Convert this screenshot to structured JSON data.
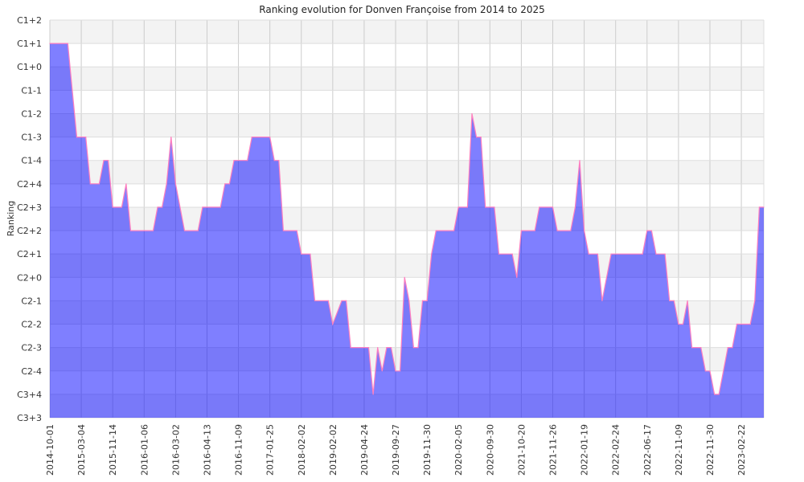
{
  "chart_data": {
    "type": "area",
    "title": "Ranking evolution for Donven Françoise from 2014 to 2025",
    "xlabel": "",
    "ylabel": "Ranking",
    "y_levels": [
      "C3+3",
      "C3+4",
      "C2-4",
      "C2-3",
      "C2-2",
      "C2-1",
      "C2+0",
      "C2+1",
      "C2+2",
      "C2+3",
      "C2+4",
      "C1-4",
      "C1-3",
      "C1-2",
      "C1-1",
      "C1+0",
      "C1+1",
      "C1+2"
    ],
    "x_range": [
      0,
      159
    ],
    "x_ticks": [
      {
        "index": 0,
        "label": "2014-10-01"
      },
      {
        "index": 7,
        "label": "2015-03-04"
      },
      {
        "index": 14,
        "label": "2015-11-14"
      },
      {
        "index": 21,
        "label": "2016-01-06"
      },
      {
        "index": 28,
        "label": "2016-03-02"
      },
      {
        "index": 35,
        "label": "2016-04-13"
      },
      {
        "index": 42,
        "label": "2016-11-09"
      },
      {
        "index": 49,
        "label": "2017-01-25"
      },
      {
        "index": 56,
        "label": "2018-02-02"
      },
      {
        "index": 63,
        "label": "2019-02-02"
      },
      {
        "index": 70,
        "label": "2019-04-24"
      },
      {
        "index": 77,
        "label": "2019-09-27"
      },
      {
        "index": 84,
        "label": "2019-11-30"
      },
      {
        "index": 91,
        "label": "2020-02-05"
      },
      {
        "index": 98,
        "label": "2020-09-30"
      },
      {
        "index": 105,
        "label": "2021-10-20"
      },
      {
        "index": 112,
        "label": "2021-11-26"
      },
      {
        "index": 119,
        "label": "2022-01-19"
      },
      {
        "index": 126,
        "label": "2022-02-24"
      },
      {
        "index": 133,
        "label": "2022-06-17"
      },
      {
        "index": 140,
        "label": "2022-11-09"
      },
      {
        "index": 147,
        "label": "2022-11-30"
      },
      {
        "index": 154,
        "label": "2023-02-22"
      }
    ],
    "points": [
      [
        0,
        16
      ],
      [
        4,
        16
      ],
      [
        6,
        12
      ],
      [
        8,
        12
      ],
      [
        9,
        10
      ],
      [
        11,
        10
      ],
      [
        12,
        11
      ],
      [
        13,
        11
      ],
      [
        14,
        9
      ],
      [
        16,
        9
      ],
      [
        17,
        10
      ],
      [
        18,
        8
      ],
      [
        23,
        8
      ],
      [
        24,
        9
      ],
      [
        25,
        9
      ],
      [
        26,
        10
      ],
      [
        27,
        12
      ],
      [
        28,
        10
      ],
      [
        30,
        8
      ],
      [
        33,
        8
      ],
      [
        34,
        9
      ],
      [
        38,
        9
      ],
      [
        39,
        10
      ],
      [
        40,
        10
      ],
      [
        41,
        11
      ],
      [
        44,
        11
      ],
      [
        45,
        12
      ],
      [
        49,
        12
      ],
      [
        50,
        11
      ],
      [
        51,
        11
      ],
      [
        52,
        8
      ],
      [
        55,
        8
      ],
      [
        56,
        7
      ],
      [
        58,
        7
      ],
      [
        59,
        5
      ],
      [
        62,
        5
      ],
      [
        63,
        4
      ],
      [
        65,
        5
      ],
      [
        66,
        5
      ],
      [
        67,
        3
      ],
      [
        71,
        3
      ],
      [
        72,
        1
      ],
      [
        73,
        3
      ],
      [
        74,
        2
      ],
      [
        75,
        3
      ],
      [
        76,
        3
      ],
      [
        77,
        2
      ],
      [
        78,
        2
      ],
      [
        79,
        6
      ],
      [
        80,
        5
      ],
      [
        81,
        3
      ],
      [
        82,
        3
      ],
      [
        83,
        5
      ],
      [
        84,
        5
      ],
      [
        85,
        7
      ],
      [
        86,
        8
      ],
      [
        90,
        8
      ],
      [
        91,
        9
      ],
      [
        93,
        9
      ],
      [
        94,
        13
      ],
      [
        95,
        12
      ],
      [
        96,
        12
      ],
      [
        97,
        9
      ],
      [
        99,
        9
      ],
      [
        100,
        7
      ],
      [
        103,
        7
      ],
      [
        104,
        6
      ],
      [
        105,
        8
      ],
      [
        108,
        8
      ],
      [
        109,
        9
      ],
      [
        112,
        9
      ],
      [
        113,
        8
      ],
      [
        116,
        8
      ],
      [
        117,
        9
      ],
      [
        118,
        11
      ],
      [
        119,
        8
      ],
      [
        120,
        7
      ],
      [
        122,
        7
      ],
      [
        123,
        5
      ],
      [
        125,
        7
      ],
      [
        132,
        7
      ],
      [
        133,
        8
      ],
      [
        134,
        8
      ],
      [
        135,
        7
      ],
      [
        137,
        7
      ],
      [
        138,
        5
      ],
      [
        139,
        5
      ],
      [
        140,
        4
      ],
      [
        141,
        4
      ],
      [
        142,
        5
      ],
      [
        143,
        3
      ],
      [
        145,
        3
      ],
      [
        146,
        2
      ],
      [
        147,
        2
      ],
      [
        148,
        1
      ],
      [
        149,
        1
      ],
      [
        151,
        3
      ],
      [
        152,
        3
      ],
      [
        153,
        4
      ],
      [
        156,
        4
      ],
      [
        157,
        5
      ],
      [
        158,
        9
      ],
      [
        159,
        9
      ]
    ],
    "colors": {
      "fill": "#8080ff",
      "line": "#ff7fbf",
      "band": "#f3f3f3",
      "grid": "#cccccc"
    }
  }
}
